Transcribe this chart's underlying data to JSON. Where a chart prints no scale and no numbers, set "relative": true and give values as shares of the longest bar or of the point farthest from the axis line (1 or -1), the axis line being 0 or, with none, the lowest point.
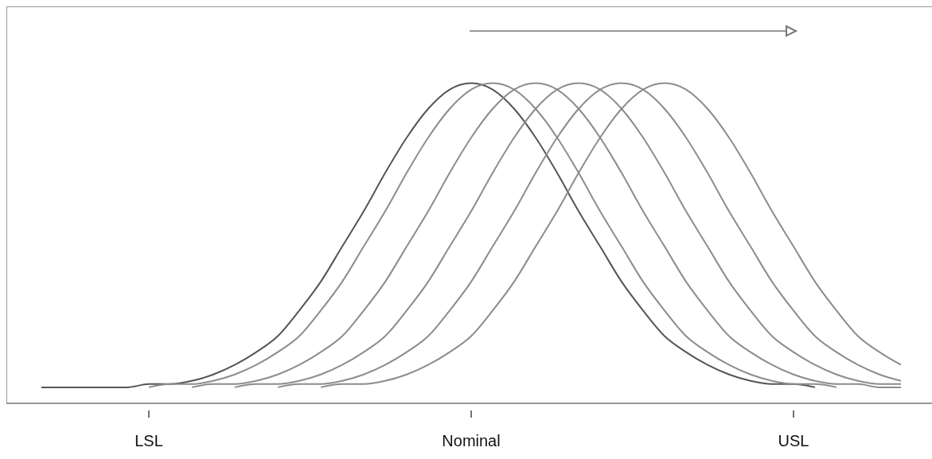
{
  "chart_data": {
    "type": "line",
    "relative": true,
    "categories": [
      null,
      null,
      null,
      null,
      null,
      "LSL",
      null,
      null,
      null,
      null,
      null,
      null,
      null,
      null,
      null,
      null,
      null,
      null,
      null,
      null,
      "Nominal",
      null,
      null,
      null,
      null,
      null,
      null,
      null,
      null,
      null,
      null,
      null,
      null,
      null,
      null,
      "USL",
      null,
      null,
      null,
      null,
      null
    ],
    "line_style": "solid",
    "series": [
      {
        "color": "#555555",
        "values": [
          0.05,
          0.05,
          0.05,
          0.05,
          0.05,
          0.06,
          0.06,
          0.07,
          0.09,
          0.12,
          0.16,
          0.21,
          0.29,
          0.38,
          0.49,
          0.6,
          0.72,
          0.83,
          0.92,
          0.98,
          1.0,
          0.98,
          0.92,
          0.83,
          0.72,
          0.6,
          0.49,
          0.38,
          0.29,
          0.21,
          0.16,
          0.12,
          0.09,
          0.07,
          0.06,
          0.06,
          0.05,
          null,
          null,
          null,
          null
        ]
      },
      {
        "color": "#8c8c8c",
        "values": [
          null,
          null,
          null,
          null,
          null,
          0.05,
          0.06,
          0.06,
          0.07,
          0.09,
          0.12,
          0.16,
          0.21,
          0.29,
          0.38,
          0.49,
          0.6,
          0.72,
          0.83,
          0.92,
          0.98,
          1.0,
          0.98,
          0.92,
          0.83,
          0.72,
          0.6,
          0.49,
          0.38,
          0.29,
          0.21,
          0.16,
          0.12,
          0.09,
          0.07,
          0.06,
          0.06,
          0.05,
          null,
          null,
          null
        ]
      },
      {
        "color": "#8c8c8c",
        "values": [
          null,
          null,
          null,
          null,
          null,
          null,
          null,
          0.05,
          0.06,
          0.06,
          0.07,
          0.09,
          0.12,
          0.16,
          0.21,
          0.29,
          0.38,
          0.49,
          0.6,
          0.72,
          0.83,
          0.92,
          0.98,
          1.0,
          0.98,
          0.92,
          0.83,
          0.72,
          0.6,
          0.49,
          0.38,
          0.29,
          0.21,
          0.16,
          0.12,
          0.09,
          0.07,
          0.06,
          0.06,
          0.05,
          0.05
        ]
      },
      {
        "color": "#8c8c8c",
        "values": [
          null,
          null,
          null,
          null,
          null,
          null,
          null,
          null,
          null,
          0.05,
          0.06,
          0.06,
          0.07,
          0.09,
          0.12,
          0.16,
          0.21,
          0.29,
          0.38,
          0.49,
          0.6,
          0.72,
          0.83,
          0.92,
          0.98,
          1.0,
          0.98,
          0.92,
          0.83,
          0.72,
          0.6,
          0.49,
          0.38,
          0.29,
          0.21,
          0.16,
          0.12,
          0.09,
          0.07,
          0.06,
          0.06
        ]
      },
      {
        "color": "#8c8c8c",
        "values": [
          null,
          null,
          null,
          null,
          null,
          null,
          null,
          null,
          null,
          null,
          null,
          0.05,
          0.06,
          0.06,
          0.07,
          0.09,
          0.12,
          0.16,
          0.21,
          0.29,
          0.38,
          0.49,
          0.6,
          0.72,
          0.83,
          0.92,
          0.98,
          1.0,
          0.98,
          0.92,
          0.83,
          0.72,
          0.6,
          0.49,
          0.38,
          0.29,
          0.21,
          0.16,
          0.12,
          0.09,
          0.07
        ]
      },
      {
        "color": "#8c8c8c",
        "values": [
          null,
          null,
          null,
          null,
          null,
          null,
          null,
          null,
          null,
          null,
          null,
          null,
          null,
          0.05,
          0.06,
          0.06,
          0.07,
          0.09,
          0.12,
          0.16,
          0.21,
          0.29,
          0.38,
          0.49,
          0.6,
          0.72,
          0.83,
          0.92,
          0.98,
          1.0,
          0.98,
          0.92,
          0.83,
          0.72,
          0.6,
          0.49,
          0.38,
          0.29,
          0.21,
          0.16,
          0.12
        ]
      }
    ]
  }
}
